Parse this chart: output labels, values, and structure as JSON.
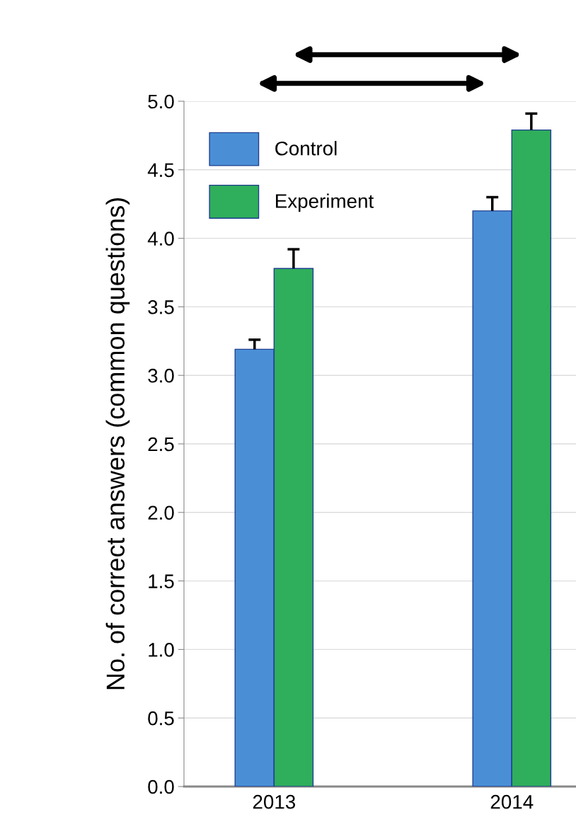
{
  "chart_data": {
    "type": "bar",
    "ylabel": "No. of correct answers (common questions)",
    "categories": [
      "2013",
      "2014"
    ],
    "series": [
      {
        "name": "Control",
        "color": "#4a8fd6",
        "values": [
          3.19,
          4.2
        ],
        "errors": [
          [
            3.19,
            3.26
          ],
          [
            4.2,
            4.3
          ]
        ]
      },
      {
        "name": "Experiment",
        "color": "#2fae5c",
        "values": [
          3.78,
          4.79
        ],
        "errors": [
          [
            3.78,
            3.92
          ],
          [
            4.79,
            4.91
          ]
        ]
      }
    ],
    "ylim": [
      0,
      5
    ],
    "yticks": [
      {
        "value": 0,
        "label": "0.0"
      },
      {
        "value": 0.5,
        "label": "0.5"
      },
      {
        "value": 1,
        "label": "1.0"
      },
      {
        "value": 1.5,
        "label": "1.5"
      },
      {
        "value": 2,
        "label": "2.0"
      },
      {
        "value": 2.5,
        "label": "2.5"
      },
      {
        "value": 3,
        "label": "3.0"
      },
      {
        "value": 3.5,
        "label": "3.5"
      },
      {
        "value": 4,
        "label": "4.0"
      },
      {
        "value": 4.5,
        "label": "4.5"
      },
      {
        "value": 5,
        "label": "5.0"
      }
    ],
    "grid": "y",
    "legend": "top left"
  }
}
